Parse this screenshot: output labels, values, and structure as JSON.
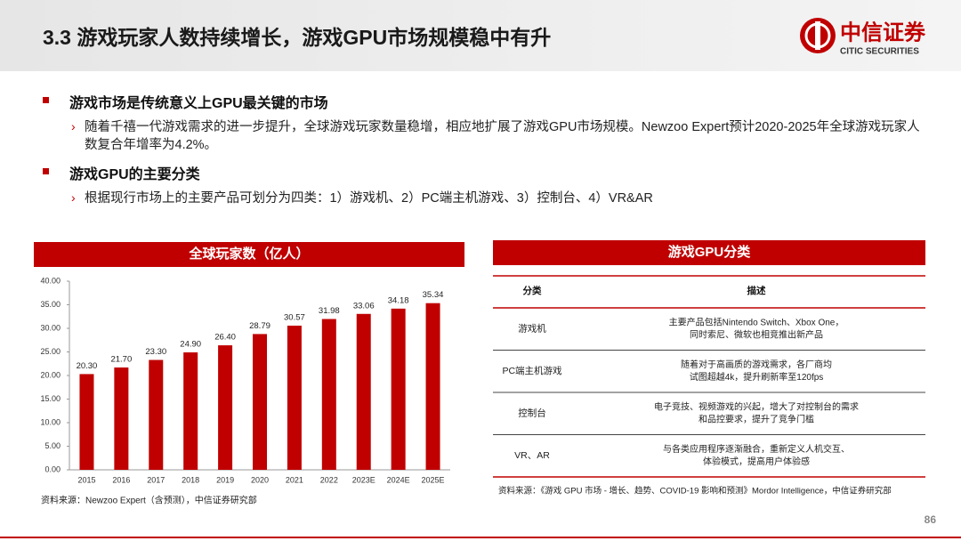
{
  "header": {
    "title": "3.3 游戏玩家人数持续增长，游戏GPU市场规模稳中有升",
    "logo_cn": "中信证券",
    "logo_en": "CITIC SECURITIES"
  },
  "bullets": [
    {
      "text": "游戏市场是传统意义上GPU最关键的市场",
      "sub": "随着千禧一代游戏需求的进一步提升，全球游戏玩家数量稳增，相应地扩展了游戏GPU市场规模。Newzoo Expert预计2020-2025年全球游戏玩家人数复合年增率为4.2%。"
    },
    {
      "text": "游戏GPU的主要分类",
      "sub": "根据现行市场上的主要产品可划分为四类：1）游戏机、2）PC端主机游戏、3）控制台、4）VR&AR"
    }
  ],
  "chart_data": {
    "type": "bar",
    "title": "全球玩家数（亿人）",
    "color": "#c00000",
    "categories": [
      "2015",
      "2016",
      "2017",
      "2018",
      "2019",
      "2020",
      "2021",
      "2022",
      "2023E",
      "2024E",
      "2025E"
    ],
    "values": [
      20.3,
      21.7,
      23.3,
      24.9,
      26.4,
      28.79,
      30.57,
      31.98,
      33.06,
      34.18,
      35.34
    ],
    "value_labels": [
      "20.30",
      "21.70",
      "23.30",
      "24.90",
      "26.40",
      "28.79",
      "30.57",
      "31.98",
      "33.06",
      "34.18",
      "35.34"
    ],
    "ylim": [
      0,
      40
    ],
    "yticks": [
      {
        "value": 0,
        "label": "0.00"
      },
      {
        "value": 5,
        "label": "5.00"
      },
      {
        "value": 10,
        "label": "10.00"
      },
      {
        "value": 15,
        "label": "15.00"
      },
      {
        "value": 20,
        "label": "20.00"
      },
      {
        "value": 25,
        "label": "25.00"
      },
      {
        "value": 30,
        "label": "30.00"
      },
      {
        "value": 35,
        "label": "35.00"
      },
      {
        "value": 40,
        "label": "40.00"
      }
    ],
    "source": "资料来源：Newzoo Expert（含预测），中信证券研究部"
  },
  "table": {
    "title": "游戏GPU分类",
    "columns": [
      "分类",
      "描述"
    ],
    "rows": [
      [
        "游戏机",
        [
          "主要产品包括Nintendo Switch、Xbox One，",
          "同时索尼、微软也相竞推出新产品"
        ]
      ],
      [
        "PC端主机游戏",
        [
          "随着对于高画质的游戏需求，各厂商均",
          "试图超越4k，提升刷新率至120fps"
        ]
      ],
      [
        "控制台",
        [
          "电子竞技、视频游戏的兴起，增大了对控制台的需求",
          "和品控要求，提升了竞争门槛"
        ]
      ],
      [
        "VR、AR",
        [
          "与各类应用程序逐渐融合，重新定义人机交互、",
          "体验模式，提高用户体验感"
        ]
      ]
    ],
    "source": "资料来源：《游戏 GPU 市场 - 增长、趋势、COVID-19 影响和预测》Mordor Intelligence，中信证券研究部"
  },
  "page_number": "86"
}
